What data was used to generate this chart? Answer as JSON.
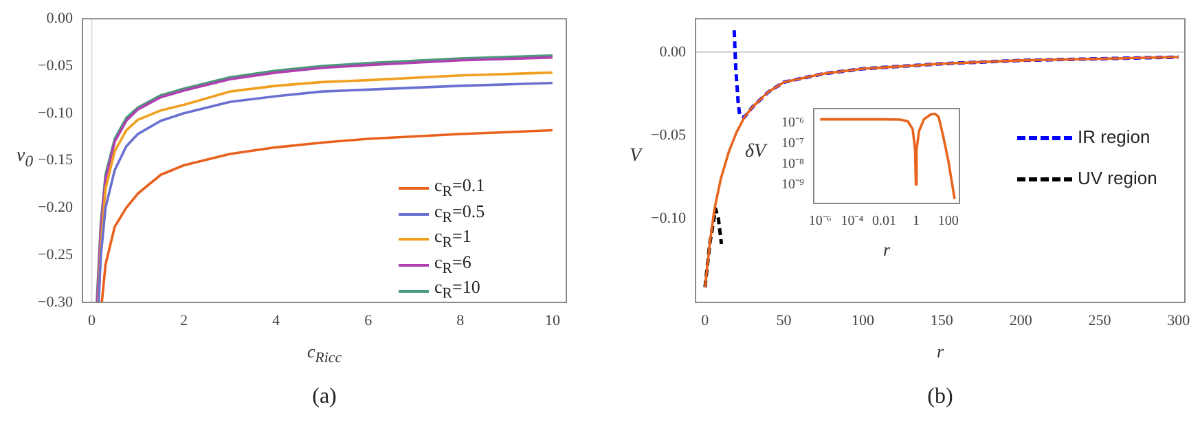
{
  "chart_data": [
    {
      "type": "line",
      "xlabel": "c$_{Ricc}$",
      "ylabel": "v$_{0}$",
      "annotations": [
        "(a)"
      ],
      "xlim": [
        -0.2,
        10.3
      ],
      "ylim": [
        -0.3,
        0
      ],
      "xticks": [
        0,
        2,
        4,
        6,
        8,
        10
      ],
      "yticks": [
        {
          "value": 0,
          "label": "0.00"
        },
        {
          "value": -0.05,
          "label": "−0.05"
        },
        {
          "value": -0.1,
          "label": "−0.10"
        },
        {
          "value": -0.15,
          "label": "−0.15"
        },
        {
          "value": -0.2,
          "label": "−0.20"
        },
        {
          "value": -0.25,
          "label": "−0.25"
        },
        {
          "value": -0.3,
          "label": "−0.30"
        }
      ],
      "legend": "right",
      "ref_lines": [
        {
          "axis": "x",
          "value": 0,
          "color": "#dddddd"
        }
      ],
      "series": [
        {
          "name": "c$_{R}$=0.1",
          "color": "#e8601c",
          "x": [
            0.22,
            0.3,
            0.5,
            0.75,
            1,
            1.5,
            2,
            3,
            4,
            5,
            6,
            8,
            10
          ],
          "values": [
            -0.3,
            -0.26,
            -0.22,
            -0.2,
            -0.185,
            -0.165,
            -0.155,
            -0.143,
            -0.136,
            -0.131,
            -0.127,
            -0.122,
            -0.118
          ]
        },
        {
          "name": "c$_{R}$=0.5",
          "color": "#6a70d0",
          "x": [
            0.15,
            0.2,
            0.3,
            0.5,
            0.75,
            1,
            1.5,
            2,
            3,
            4,
            5,
            6,
            8,
            10
          ],
          "values": [
            -0.3,
            -0.25,
            -0.2,
            -0.16,
            -0.135,
            -0.122,
            -0.108,
            -0.1,
            -0.088,
            -0.082,
            -0.077,
            -0.075,
            -0.071,
            -0.068
          ]
        },
        {
          "name": "c$_{R}$=1",
          "color": "#f0a020",
          "x": [
            0.14,
            0.2,
            0.3,
            0.5,
            0.75,
            1,
            1.5,
            2,
            3,
            4,
            5,
            6,
            8,
            10
          ],
          "values": [
            -0.3,
            -0.24,
            -0.18,
            -0.14,
            -0.118,
            -0.107,
            -0.097,
            -0.091,
            -0.077,
            -0.071,
            -0.067,
            -0.065,
            -0.06,
            -0.057
          ]
        },
        {
          "name": "c$_{R}$=6",
          "color": "#b040b0",
          "x": [
            0.12,
            0.2,
            0.3,
            0.5,
            0.75,
            1,
            1.5,
            2,
            3,
            4,
            5,
            6,
            8,
            10
          ],
          "values": [
            -0.3,
            -0.22,
            -0.17,
            -0.13,
            -0.108,
            -0.096,
            -0.083,
            -0.076,
            -0.064,
            -0.057,
            -0.052,
            -0.049,
            -0.044,
            -0.041
          ]
        },
        {
          "name": "c$_{R}$=10",
          "color": "#4a9a7a",
          "x": [
            0.11,
            0.2,
            0.3,
            0.5,
            0.75,
            1,
            1.5,
            2,
            3,
            4,
            5,
            6,
            8,
            10
          ],
          "values": [
            -0.3,
            -0.215,
            -0.165,
            -0.127,
            -0.105,
            -0.094,
            -0.081,
            -0.074,
            -0.062,
            -0.055,
            -0.05,
            -0.047,
            -0.042,
            -0.039
          ]
        }
      ]
    },
    {
      "type": "line",
      "xlabel": "r",
      "ylabel": "V",
      "annotations": [
        "(b)"
      ],
      "xlim": [
        -6,
        304
      ],
      "ylim": [
        -0.15,
        0.02
      ],
      "xticks": [
        0,
        50,
        100,
        150,
        200,
        250,
        300
      ],
      "yticks": [
        {
          "value": 0,
          "label": "0.00"
        },
        {
          "value": -0.05,
          "label": "−0.05"
        },
        {
          "value": -0.1,
          "label": "−0.10"
        }
      ],
      "legend": "right",
      "ref_lines": [
        {
          "axis": "y",
          "value": 0,
          "color": "#cccccc"
        }
      ],
      "series": [
        {
          "color": "#e8641e",
          "x": [
            0,
            3,
            6,
            10,
            15,
            20,
            25,
            30,
            40,
            50,
            75,
            100,
            150,
            200,
            250,
            300
          ],
          "values": [
            -0.141,
            -0.115,
            -0.094,
            -0.076,
            -0.06,
            -0.048,
            -0.039,
            -0.033,
            -0.024,
            -0.018,
            -0.013,
            -0.01,
            -0.007,
            -0.005,
            -0.004,
            -0.003
          ]
        },
        {
          "name": "IR region",
          "color": "#0000ff",
          "line_style": "dashed",
          "x": [
            18.5,
            19.5,
            21,
            22,
            25,
            30,
            40,
            50,
            75,
            100,
            150,
            200,
            250,
            300
          ],
          "values": [
            0.013,
            -0.01,
            -0.03,
            -0.038,
            -0.039,
            -0.033,
            -0.024,
            -0.018,
            -0.013,
            -0.01,
            -0.007,
            -0.005,
            -0.004,
            -0.003
          ]
        },
        {
          "name": "UV region",
          "color": "#000000",
          "line_style": "dashed",
          "x": [
            0,
            3,
            6.7,
            8.5,
            10.4
          ],
          "values": [
            -0.141,
            -0.115,
            -0.094,
            -0.1,
            -0.115
          ]
        }
      ]
    },
    {
      "type": "line",
      "xlabel": "r",
      "ylabel": "δV",
      "log": "xy",
      "xlim": [
        4e-07,
        500
      ],
      "ylim": [
        1.2e-10,
        5e-06
      ],
      "xticks": [
        {
          "value": 1e-06,
          "label": "10⁻⁶"
        },
        {
          "value": 0.0001,
          "label": "10⁻⁴"
        },
        {
          "value": 0.01,
          "label": "0.01"
        },
        1,
        100
      ],
      "yticks": [
        {
          "value": 1e-06,
          "label": "10⁻⁶"
        },
        {
          "value": 1e-07,
          "label": "10⁻⁷"
        },
        {
          "value": 1e-08,
          "label": "10⁻⁸"
        },
        {
          "value": 1e-09,
          "label": "10⁻⁹"
        }
      ],
      "series": [
        {
          "color": "#e8641e",
          "x": [
            1e-06,
            0.0001,
            0.01,
            0.1,
            0.3,
            0.6,
            0.85,
            0.95,
            1.05,
            1.5,
            3,
            8,
            15,
            25,
            50,
            100,
            250
          ],
          "values": [
            1.5e-06,
            1.5e-06,
            1.5e-06,
            1.45e-06,
            1.2e-06,
            5e-07,
            5e-08,
            1e-09,
            5e-08,
            4e-07,
            1.5e-06,
            2.6e-06,
            2.8e-06,
            2e-06,
            2e-07,
            1.5e-08,
            2e-10
          ]
        }
      ]
    }
  ]
}
